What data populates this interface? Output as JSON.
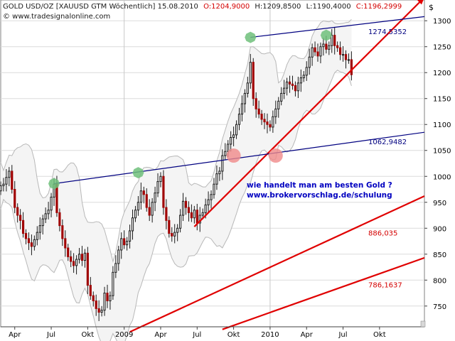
{
  "header": {
    "title": "GOLD USD/OZ [XAUUSD GTM  Wöchentlich] 15.08.2010",
    "open": "O:1204,9000",
    "high": "H:1209,8500",
    "low": "L:1190,4000",
    "close": "C:1196,2999",
    "website": "© www.tradesignalonline.com",
    "open_color": "#d40000",
    "close_color": "#d40000"
  },
  "annotation": {
    "line1": "wie handelt man am besten Gold ?",
    "line2": "www.brokervorschlag.de/schulung",
    "color": "#0000c0"
  },
  "corner_symbol": "$",
  "chart_data": {
    "type": "candlestick",
    "title": "GOLD USD/OZ [XAUUSD GTM  Wöchentlich] 15.08.2010",
    "ylim": [
      710,
      1340
    ],
    "y_ticks": [
      750,
      800,
      850,
      900,
      950,
      1000,
      1050,
      1100,
      1150,
      1200,
      1250,
      1300
    ],
    "y_tick_labels": [
      "750",
      "800",
      "850",
      "900",
      "950",
      "1000",
      "1050",
      "1100",
      "1150",
      "1200",
      "1250",
      "1300"
    ],
    "x_ticks": [
      "Apr",
      "Jul",
      "Okt",
      "2009",
      "Apr",
      "Jul",
      "Okt",
      "2010",
      "Apr",
      "Jul",
      "Okt"
    ],
    "x_range_weeks": [
      0,
      151
    ],
    "x_tick_weeks": [
      5,
      18,
      31,
      44,
      57,
      70,
      83,
      96,
      109,
      122,
      135
    ],
    "grid": true,
    "colors": {
      "up": "#1a1a1a",
      "down": "#a00000",
      "trend": "#e00000",
      "channel": "#000080",
      "band": "#b8b8b8",
      "support_dot": "#6fc07a",
      "break_dot": "#f08a8a"
    },
    "candles_close": [
      982,
      985,
      998,
      1010,
      975,
      940,
      925,
      915,
      890,
      880,
      872,
      865,
      878,
      892,
      905,
      918,
      928,
      935,
      960,
      985,
      930,
      905,
      880,
      862,
      845,
      836,
      828,
      840,
      850,
      838,
      852,
      790,
      770,
      760,
      745,
      738,
      742,
      775,
      760,
      770,
      815,
      832,
      858,
      880,
      868,
      875,
      895,
      920,
      935,
      950,
      972,
      965,
      940,
      925,
      950,
      968,
      990,
      1000,
      940,
      915,
      890,
      885,
      892,
      900,
      925,
      952,
      940,
      930,
      920,
      935,
      910,
      925,
      930,
      945,
      955,
      965,
      985,
      1005,
      1010,
      1040,
      1048,
      1062,
      1075,
      1080,
      1100,
      1120,
      1140,
      1160,
      1180,
      1220,
      1150,
      1130,
      1120,
      1110,
      1105,
      1100,
      1095,
      1115,
      1130,
      1145,
      1160,
      1170,
      1182,
      1178,
      1175,
      1165,
      1180,
      1190,
      1195,
      1210,
      1230,
      1248,
      1240,
      1232,
      1250,
      1255,
      1245,
      1252,
      1272,
      1252,
      1248,
      1235,
      1235,
      1225,
      1225,
      1196
    ],
    "trend_lines": [
      {
        "kind": "support",
        "points": [
          [
            69,
            903
          ],
          [
            151,
            1345
          ]
        ]
      },
      {
        "kind": "parallel",
        "points": [
          [
            46,
            700
          ],
          [
            151,
            962
          ]
        ]
      },
      {
        "kind": "parallel",
        "points": [
          [
            79,
            705
          ],
          [
            151,
            843
          ]
        ]
      }
    ],
    "channel_lines": [
      {
        "points": [
          [
            19,
            986
          ],
          [
            151,
            1085
          ]
        ],
        "label": "1062,9482"
      },
      {
        "points": [
          [
            89,
            1268
          ],
          [
            151,
            1308
          ]
        ],
        "label": "1274,5352"
      }
    ],
    "line_labels": [
      {
        "text": "1274,5352",
        "x": 131,
        "y": 1274,
        "color": "#000080"
      },
      {
        "text": "1062,9482",
        "x": 131,
        "y": 1062,
        "color": "#000080"
      },
      {
        "text": "886,035",
        "x": 131,
        "y": 886,
        "color": "#d40000"
      },
      {
        "text": "786,1637",
        "x": 131,
        "y": 786,
        "color": "#d40000"
      }
    ],
    "markers": [
      {
        "kind": "support_dot",
        "week": 19,
        "value": 986
      },
      {
        "kind": "support_dot",
        "week": 49,
        "value": 1007
      },
      {
        "kind": "support_dot",
        "week": 89,
        "value": 1268
      },
      {
        "kind": "support_dot",
        "week": 116,
        "value": 1272
      },
      {
        "kind": "break_dot",
        "week": 83,
        "value": 1040
      },
      {
        "kind": "break_dot",
        "week": 98,
        "value": 1040
      }
    ]
  }
}
